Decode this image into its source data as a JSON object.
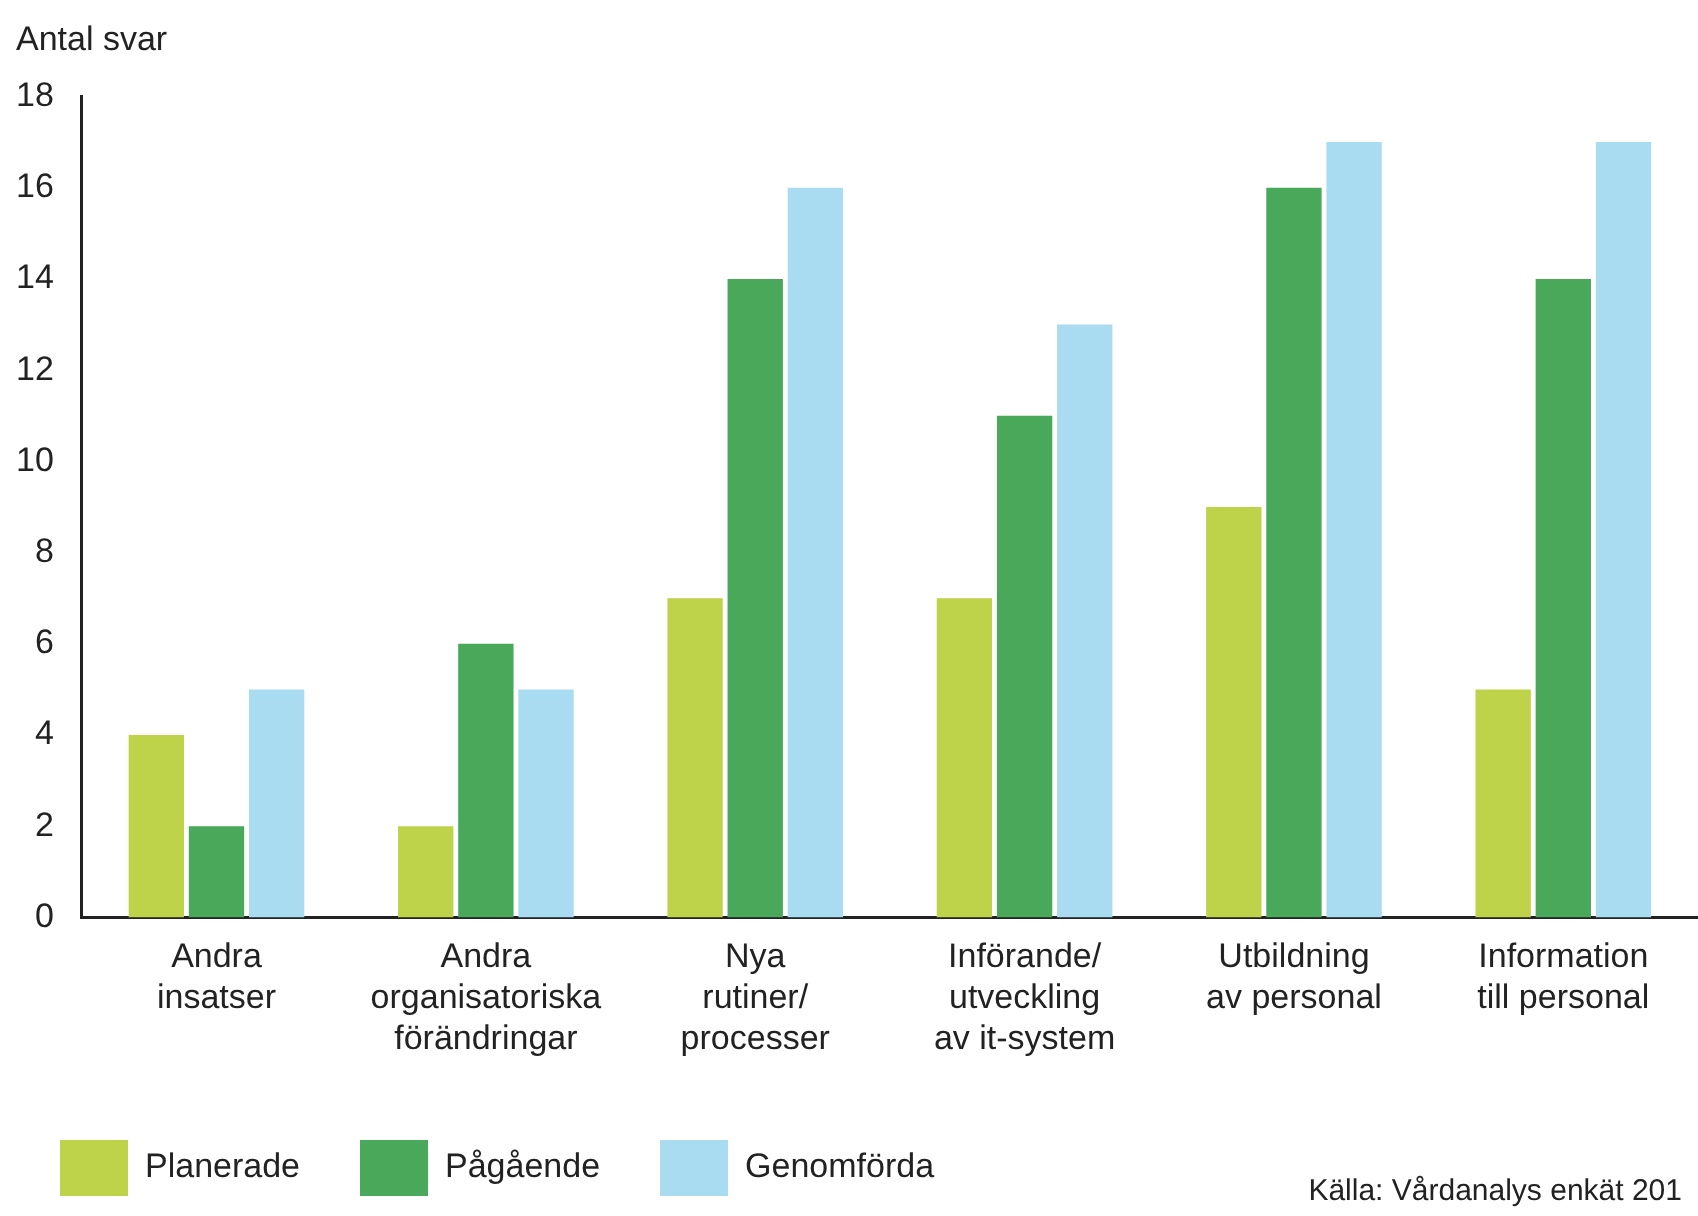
{
  "chart_data": {
    "type": "bar",
    "ylabel": "Antal svar",
    "categories": [
      "Andra\ninsatser",
      "Andra\norganisatoriska\nförändringar",
      "Nya\nrutiner/\nprocesser",
      "Införande/\nutveckling\nav it-system",
      "Utbildning\nav personal",
      "Information\ntill personal"
    ],
    "series": [
      {
        "name": "Planerade",
        "color": "#bed34a",
        "values": [
          4,
          2,
          7,
          7,
          9,
          5
        ]
      },
      {
        "name": "Pågående",
        "color": "#4aa85a",
        "values": [
          2,
          6,
          14,
          11,
          16,
          14
        ]
      },
      {
        "name": "Genomförda",
        "color": "#a9dcf0",
        "values": [
          5,
          5,
          16,
          13,
          17,
          17
        ]
      }
    ],
    "ylim": [
      0,
      18
    ],
    "yticks": [
      0,
      2,
      4,
      6,
      8,
      10,
      12,
      14,
      16,
      18
    ],
    "grid": false,
    "legend": "bottom left",
    "annotations": [
      "Källa: Vårdanalys enkät 201"
    ]
  }
}
